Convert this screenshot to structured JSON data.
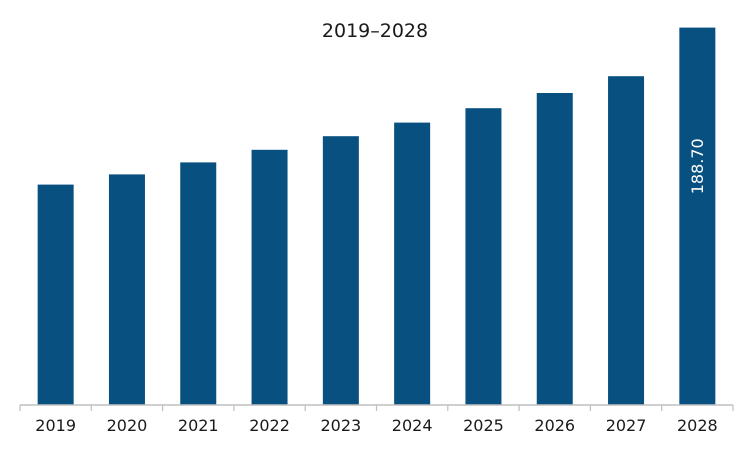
{
  "chart_data": {
    "type": "bar",
    "title": "2019–2028",
    "xlabel": "",
    "ylabel": "",
    "categories": [
      "2019",
      "2020",
      "2021",
      "2022",
      "2023",
      "2024",
      "2025",
      "2026",
      "2027",
      "2028"
    ],
    "values": [
      110.2,
      115.3,
      121.3,
      127.6,
      134.4,
      141.2,
      148.4,
      156.0,
      164.4,
      188.7
    ],
    "data_labels": [
      {
        "category": "2028",
        "text": "188.70"
      }
    ],
    "ylim": [
      0,
      200
    ],
    "grid": false,
    "legend": "none",
    "bar_color": "#07507f",
    "axis_color": "#bfbfbf"
  }
}
